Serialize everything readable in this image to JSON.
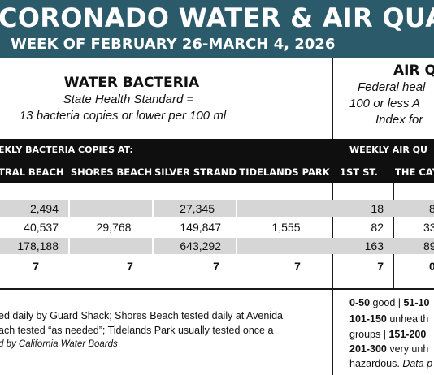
{
  "header": {
    "title": "CORONADO WATER & AIR QUALITY R",
    "subtitle": "WEEK OF FEBRUARY 26-MARCH 4, 2026"
  },
  "water": {
    "heading": "WATER BACTERIA",
    "standard_line1": "State Health Standard =",
    "standard_line2": "13 bacteria copies or lower per 100 ml",
    "bar_label": "EKLY BACTERIA COPIES AT:",
    "columns": [
      "TRAL BEACH",
      "SHORES BEACH",
      "SILVER STRAND",
      "TIDELANDS PARK"
    ],
    "rows": [
      [
        "2,494",
        "",
        "27,345",
        ""
      ],
      [
        "40,537",
        "29,768",
        "149,847",
        "1,555"
      ],
      [
        "178,188",
        "",
        "643,292",
        ""
      ],
      [
        "7",
        "7",
        "7",
        "7"
      ]
    ],
    "note_line1": "ed daily by Guard Shack; Shores Beach tested daily at Avenida",
    "note_line2": "ach tested “as needed”; Tidelands Park usually tested once a",
    "note_line3": "d by California Water Boards"
  },
  "air": {
    "heading": "AIR Q",
    "standard_line1": "Federal heal",
    "standard_line2": "100 or less A",
    "standard_line3": "Index for",
    "bar_label": "WEEKLY AIR QU",
    "columns": [
      "1ST ST.",
      "THE CAY"
    ],
    "rows": [
      [
        "18",
        "8"
      ],
      [
        "82",
        "33"
      ],
      [
        "163",
        "89"
      ],
      [
        "7",
        "0"
      ]
    ],
    "scale_line1_a": "0-50",
    "scale_line1_b": " good | ",
    "scale_line1_c": "51-10",
    "scale_line2_a": "101-150",
    "scale_line2_b": " unhealth",
    "scale_line3_a": "groups | ",
    "scale_line3_b": "151-200",
    "scale_line4_a": "201-300",
    "scale_line4_b": " very unh",
    "scale_line5_a": "hazardous. ",
    "scale_line5_b": "Data p"
  },
  "colors": {
    "banner": "#2b5a6b",
    "bar": "#0f0f0f",
    "row_shade": "#d6d6d6"
  }
}
